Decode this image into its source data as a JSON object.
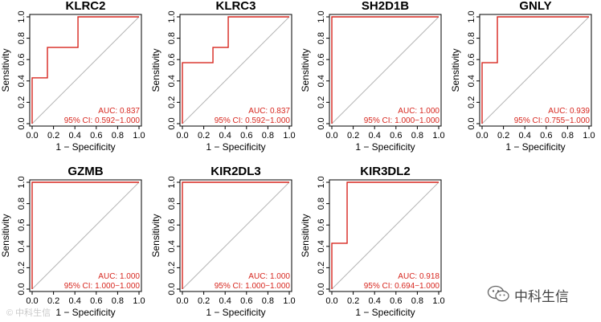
{
  "chart_data": [
    {
      "type": "line",
      "title": "KLRC2",
      "xlabel": "1 − Specificity",
      "ylabel": "Sensitivity",
      "xlim": [
        0.0,
        1.0
      ],
      "ylim": [
        0.0,
        1.0
      ],
      "xticks": [
        "0.0",
        "0.2",
        "0.4",
        "0.6",
        "0.8",
        "1.0"
      ],
      "yticks": [
        "0.0",
        "0.2",
        "0.4",
        "0.6",
        "0.8",
        "1.0"
      ],
      "series": [
        {
          "x": [
            0,
            0,
            0.143,
            0.143,
            0.429,
            0.429,
            1.0
          ],
          "y": [
            0,
            0.429,
            0.429,
            0.714,
            0.714,
            1.0,
            1.0
          ]
        }
      ],
      "reference_line": {
        "x": [
          0,
          1
        ],
        "y": [
          0,
          1
        ]
      },
      "annotations": [
        "AUC: 0.837",
        "95% CI: 0.592−1.000"
      ]
    },
    {
      "type": "line",
      "title": "KLRC3",
      "xlabel": "1 − Specificity",
      "ylabel": "Sensitivity",
      "xlim": [
        0.0,
        1.0
      ],
      "ylim": [
        0.0,
        1.0
      ],
      "xticks": [
        "0.0",
        "0.2",
        "0.4",
        "0.6",
        "0.8",
        "1.0"
      ],
      "yticks": [
        "0.0",
        "0.2",
        "0.4",
        "0.6",
        "0.8",
        "1.0"
      ],
      "series": [
        {
          "x": [
            0,
            0,
            0.286,
            0.286,
            0.429,
            0.429,
            1.0
          ],
          "y": [
            0,
            0.571,
            0.571,
            0.714,
            0.714,
            1.0,
            1.0
          ]
        }
      ],
      "reference_line": {
        "x": [
          0,
          1
        ],
        "y": [
          0,
          1
        ]
      },
      "annotations": [
        "AUC: 0.837",
        "95% CI: 0.592−1.000"
      ]
    },
    {
      "type": "line",
      "title": "SH2D1B",
      "xlabel": "1 − Specificity",
      "ylabel": "Sensitivity",
      "xlim": [
        0.0,
        1.0
      ],
      "ylim": [
        0.0,
        1.0
      ],
      "xticks": [
        "0.0",
        "0.2",
        "0.4",
        "0.6",
        "0.8",
        "1.0"
      ],
      "yticks": [
        "0.0",
        "0.2",
        "0.4",
        "0.6",
        "0.8",
        "1.0"
      ],
      "series": [
        {
          "x": [
            0,
            0,
            1.0
          ],
          "y": [
            0,
            1.0,
            1.0
          ]
        }
      ],
      "reference_line": {
        "x": [
          0,
          1
        ],
        "y": [
          0,
          1
        ]
      },
      "annotations": [
        "AUC: 1.000",
        "95% CI: 1.000−1.000"
      ]
    },
    {
      "type": "line",
      "title": "GNLY",
      "xlabel": "1 − Specificity",
      "ylabel": "Sensitivity",
      "xlim": [
        0.0,
        1.0
      ],
      "ylim": [
        0.0,
        1.0
      ],
      "xticks": [
        "0.0",
        "0.2",
        "0.4",
        "0.6",
        "0.8",
        "1.0"
      ],
      "yticks": [
        "0.0",
        "0.2",
        "0.4",
        "0.6",
        "0.8",
        "1.0"
      ],
      "series": [
        {
          "x": [
            0,
            0,
            0.143,
            0.143,
            1.0
          ],
          "y": [
            0,
            0.571,
            0.571,
            1.0,
            1.0
          ]
        }
      ],
      "reference_line": {
        "x": [
          0,
          1
        ],
        "y": [
          0,
          1
        ]
      },
      "annotations": [
        "AUC: 0.939",
        "95% CI: 0.755−1.000"
      ]
    },
    {
      "type": "line",
      "title": "GZMB",
      "xlabel": "1 − Specificity",
      "ylabel": "Sensitivity",
      "xlim": [
        0.0,
        1.0
      ],
      "ylim": [
        0.0,
        1.0
      ],
      "xticks": [
        "0.0",
        "0.2",
        "0.4",
        "0.6",
        "0.8",
        "1.0"
      ],
      "yticks": [
        "0.0",
        "0.2",
        "0.4",
        "0.6",
        "0.8",
        "1.0"
      ],
      "series": [
        {
          "x": [
            0,
            0,
            1.0
          ],
          "y": [
            0,
            1.0,
            1.0
          ]
        }
      ],
      "reference_line": {
        "x": [
          0,
          1
        ],
        "y": [
          0,
          1
        ]
      },
      "annotations": [
        "AUC: 1.000",
        "95% CI: 1.000−1.000"
      ]
    },
    {
      "type": "line",
      "title": "KIR2DL3",
      "xlabel": "1 − Specificity",
      "ylabel": "Sensitivity",
      "xlim": [
        0.0,
        1.0
      ],
      "ylim": [
        0.0,
        1.0
      ],
      "xticks": [
        "0.0",
        "0.2",
        "0.4",
        "0.6",
        "0.8",
        "1.0"
      ],
      "yticks": [
        "0.0",
        "0.2",
        "0.4",
        "0.6",
        "0.8",
        "1.0"
      ],
      "series": [
        {
          "x": [
            0,
            0,
            1.0
          ],
          "y": [
            0,
            1.0,
            1.0
          ]
        }
      ],
      "reference_line": {
        "x": [
          0,
          1
        ],
        "y": [
          0,
          1
        ]
      },
      "annotations": [
        "AUC: 1.000",
        "95% CI: 1.000−1.000"
      ]
    },
    {
      "type": "line",
      "title": "KIR3DL2",
      "xlabel": "1 − Specificity",
      "ylabel": "Sensitivity",
      "xlim": [
        0.0,
        1.0
      ],
      "ylim": [
        0.0,
        1.0
      ],
      "xticks": [
        "0.0",
        "0.2",
        "0.4",
        "0.6",
        "0.8",
        "1.0"
      ],
      "yticks": [
        "0.0",
        "0.2",
        "0.4",
        "0.6",
        "0.8",
        "1.0"
      ],
      "series": [
        {
          "x": [
            0,
            0,
            0.143,
            0.143,
            1.0
          ],
          "y": [
            0,
            0.429,
            0.429,
            1.0,
            1.0
          ]
        }
      ],
      "reference_line": {
        "x": [
          0,
          1
        ],
        "y": [
          0,
          1
        ]
      },
      "annotations": [
        "AUC: 0.918",
        "95% CI: 0.694−1.000"
      ]
    }
  ],
  "colors": {
    "roc": "#d7261e",
    "reference": "#b5b5b5",
    "axis": "#000000"
  },
  "watermark": {
    "icon": "wechat-icon",
    "text": "中科生信",
    "left_text": "© 中科生信"
  }
}
